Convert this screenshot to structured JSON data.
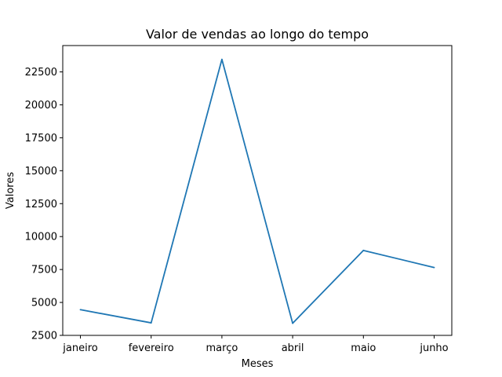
{
  "chart_data": {
    "type": "line",
    "title": "Valor de vendas ao longo do tempo",
    "xlabel": "Meses",
    "ylabel": "Valores",
    "categories": [
      "janeiro",
      "fevereiro",
      "março",
      "abril",
      "maio",
      "junho"
    ],
    "series": [
      {
        "values": [
          4450,
          3450,
          23450,
          3420,
          8950,
          7650
        ],
        "color": "#1f77b4"
      }
    ],
    "ylim": [
      2500,
      24500
    ],
    "yticks": [
      2500,
      5000,
      7500,
      10000,
      12500,
      15000,
      17500,
      20000,
      22500
    ],
    "ytick_labels": [
      "2500",
      "5000",
      "7500",
      "10000",
      "12500",
      "15000",
      "17500",
      "20000",
      "22500"
    ],
    "grid": false,
    "legend": false
  }
}
